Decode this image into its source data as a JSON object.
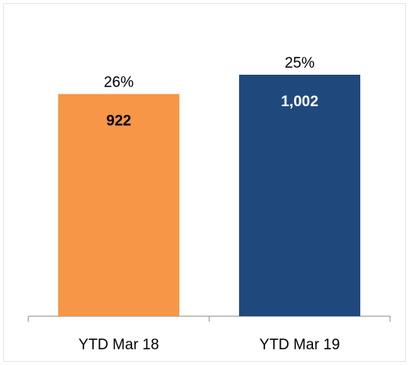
{
  "chart_data": {
    "type": "bar",
    "categories": [
      "YTD Mar 18",
      "YTD Mar 19"
    ],
    "values": [
      922,
      1002
    ],
    "value_labels": [
      "922",
      "1,002"
    ],
    "colors": [
      "#f79646",
      "#1f497d"
    ],
    "annotations": [
      "26%",
      "25%"
    ]
  }
}
